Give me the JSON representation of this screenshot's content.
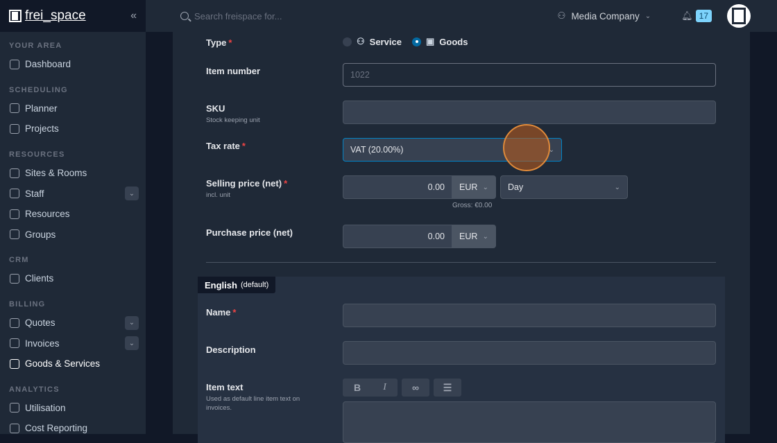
{
  "app": {
    "logo": "frei_space",
    "search_placeholder": "Search freispace for...",
    "company": "Media Company",
    "notifications": "17"
  },
  "sidebar": {
    "sections": [
      {
        "title": "YOUR AREA",
        "items": [
          {
            "label": "Dashboard",
            "icon": "home-icon"
          }
        ]
      },
      {
        "title": "SCHEDULING",
        "items": [
          {
            "label": "Planner",
            "icon": "calendar-icon"
          },
          {
            "label": "Projects",
            "icon": "clipboard-icon"
          }
        ]
      },
      {
        "title": "RESOURCES",
        "items": [
          {
            "label": "Sites & Rooms",
            "icon": "location-icon"
          },
          {
            "label": "Staff",
            "icon": "users-icon",
            "expandable": true
          },
          {
            "label": "Resources",
            "icon": "sparkles-icon"
          },
          {
            "label": "Groups",
            "icon": "folder-icon"
          }
        ]
      },
      {
        "title": "CRM",
        "items": [
          {
            "label": "Clients",
            "icon": "briefcase-icon"
          }
        ]
      },
      {
        "title": "BILLING",
        "items": [
          {
            "label": "Quotes",
            "icon": "document-check-icon",
            "expandable": true
          },
          {
            "label": "Invoices",
            "icon": "document-icon",
            "expandable": true
          },
          {
            "label": "Goods & Services",
            "icon": "shopping-bag-icon",
            "active": true
          }
        ]
      },
      {
        "title": "ANALYTICS",
        "items": [
          {
            "label": "Utilisation",
            "icon": "bar-chart-icon"
          },
          {
            "label": "Cost Reporting",
            "icon": "pie-chart-icon"
          }
        ]
      }
    ]
  },
  "form": {
    "type": {
      "label": "Type",
      "options": [
        "Service",
        "Goods"
      ],
      "selected": "Goods"
    },
    "item_number": {
      "label": "Item number",
      "placeholder": "1022"
    },
    "sku": {
      "label": "SKU",
      "hint": "Stock keeping unit",
      "value": ""
    },
    "tax_rate": {
      "label": "Tax rate",
      "value": "VAT (20.00%)"
    },
    "selling_price": {
      "label": "Selling price (net)",
      "hint": "incl. unit",
      "value": "0.00",
      "currency": "EUR",
      "unit": "Day",
      "gross": "Gross: €0.00"
    },
    "purchase_price": {
      "label": "Purchase price (net)",
      "value": "0.00",
      "currency": "EUR"
    },
    "language": {
      "tab": "English",
      "tab_note": "(default)",
      "name_label": "Name",
      "description_label": "Description",
      "item_text_label": "Item text",
      "item_text_hint": "Used as default line item text on invoices.",
      "toolbar": {
        "bold": "B",
        "italic": "I"
      }
    }
  },
  "colors": {
    "accent": "#0369a1",
    "required": "#ef4444",
    "badge": "#7dd3fc"
  }
}
